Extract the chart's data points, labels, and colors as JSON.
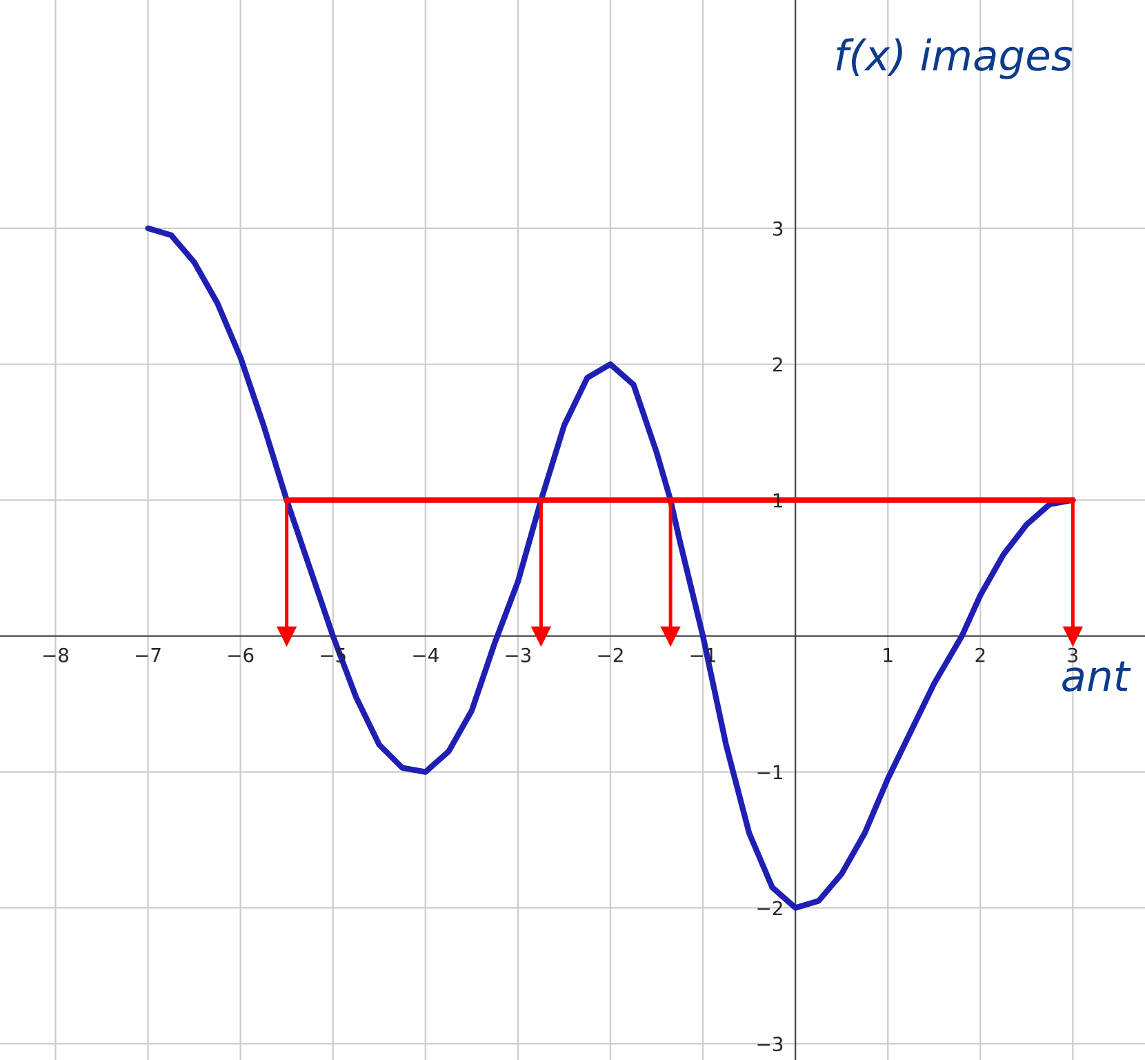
{
  "chart_data": {
    "type": "line",
    "xlabel": "ant",
    "ylabel": "f(x) images",
    "xlim": [
      -8.6,
      3.78
    ],
    "ylim": [
      -3.12,
      4.68
    ],
    "xticks": [
      -8,
      -7,
      -6,
      -5,
      -4,
      -3,
      -2,
      -1,
      1,
      2,
      3
    ],
    "yticks": [
      -3,
      -2,
      -1,
      1,
      2,
      3
    ],
    "grid": true,
    "marker": "none",
    "line_style": "solid",
    "series": [
      {
        "color": "#1f1fb4",
        "x": [
          -7,
          -6.75,
          -6.5,
          -6.25,
          -6,
          -5.75,
          -5.5,
          -5.25,
          -5,
          -4.75,
          -4.5,
          -4.25,
          -4,
          -3.75,
          -3.5,
          -3.25,
          -3,
          -2.75,
          -2.5,
          -2.25,
          -2,
          -1.75,
          -1.5,
          -1.35,
          -1.25,
          -1,
          -0.75,
          -0.5,
          -0.25,
          0,
          0.25,
          0.5,
          0.75,
          1,
          1.25,
          1.5,
          1.8,
          2,
          2.25,
          2.5,
          2.75,
          3
        ],
        "values": [
          3,
          2.95,
          2.75,
          2.45,
          2.05,
          1.55,
          1,
          0.5,
          0,
          -0.45,
          -0.8,
          -0.97,
          -1,
          -0.85,
          -0.55,
          -0.05,
          0.4,
          1,
          1.55,
          1.9,
          2,
          1.85,
          1.35,
          1,
          0.7,
          0,
          -0.8,
          -1.45,
          -1.85,
          -2,
          -1.95,
          -1.75,
          -1.45,
          -1.05,
          -0.7,
          -0.35,
          0,
          0.3,
          0.6,
          0.82,
          0.97,
          1
        ]
      },
      {
        "color": "#ff0000",
        "x": [
          -5.5,
          3
        ],
        "values": [
          1,
          1
        ]
      },
      {
        "marker": "triangle",
        "color": "#ff0000",
        "x": [
          -5.5,
          -5.5
        ],
        "values": [
          1,
          0
        ]
      },
      {
        "marker": "triangle",
        "color": "#ff0000",
        "x": [
          -2.75,
          -2.75
        ],
        "values": [
          1,
          0
        ]
      },
      {
        "marker": "triangle",
        "color": "#ff0000",
        "x": [
          -1.35,
          -1.35
        ],
        "values": [
          1,
          0
        ]
      },
      {
        "marker": "triangle",
        "color": "#ff0000",
        "x": [
          3,
          3
        ],
        "values": [
          1,
          0
        ]
      }
    ]
  }
}
